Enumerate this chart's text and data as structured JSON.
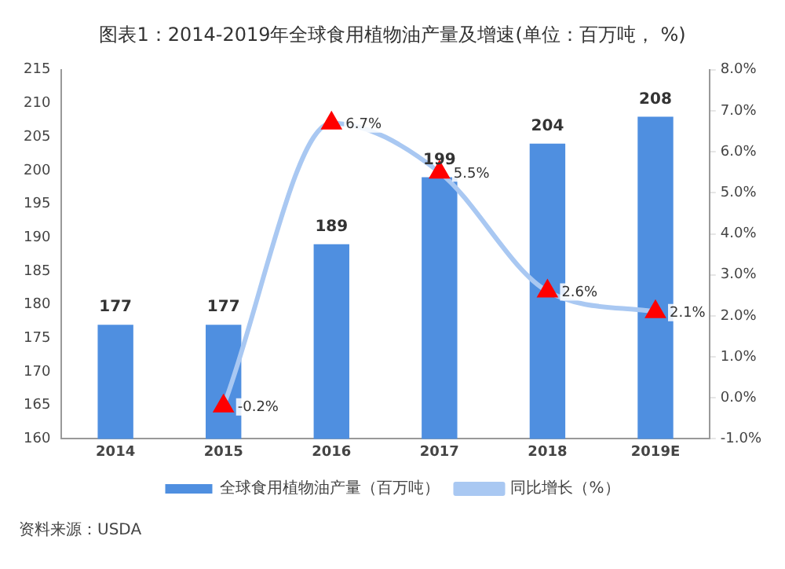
{
  "chart_data": {
    "type": "bar",
    "title": "图表1：2014-2019年全球食用植物油产量及增速(单位：百万吨， %)",
    "categories": [
      "2014",
      "2015",
      "2016",
      "2017",
      "2018",
      "2019E"
    ],
    "series": [
      {
        "name": "全球食用植物油产量（百万吨）",
        "color": "#4f8fe0",
        "values": [
          177,
          177,
          189,
          199,
          204,
          208
        ]
      },
      {
        "name": "同比增长（%）",
        "type": "line",
        "axis": "y2",
        "color": "#a9c8f2",
        "colors": [
          null,
          "#ff0000",
          "#ff0000",
          "#ff0000",
          "#ff0000",
          "#ff0000"
        ],
        "values": [
          null,
          -0.2,
          6.7,
          5.5,
          2.6,
          2.1
        ],
        "value_labels": [
          null,
          "-0.2%",
          "6.7%",
          "5.5%",
          "2.6%",
          "2.1%"
        ]
      }
    ],
    "data_labels": true,
    "ylim": [
      160,
      215
    ],
    "yticks": [
      160,
      165,
      170,
      175,
      180,
      185,
      190,
      195,
      200,
      205,
      210,
      215
    ],
    "y2lim": [
      -1,
      8
    ],
    "y2ticks": [
      {
        "value": -1,
        "label": "-1.0%"
      },
      {
        "value": 0,
        "label": "0.0%"
      },
      {
        "value": 1,
        "label": "1.0%"
      },
      {
        "value": 2,
        "label": "2.0%"
      },
      {
        "value": 3,
        "label": "3.0%"
      },
      {
        "value": 4,
        "label": "4.0%"
      },
      {
        "value": 5,
        "label": "5.0%"
      },
      {
        "value": 6,
        "label": "6.0%"
      },
      {
        "value": 7,
        "label": "7.0%"
      },
      {
        "value": 8,
        "label": "8.0%"
      }
    ],
    "marker": "triangle",
    "grid": false,
    "legend": "bottom",
    "annotations": [
      "资料来源：USDA"
    ]
  }
}
